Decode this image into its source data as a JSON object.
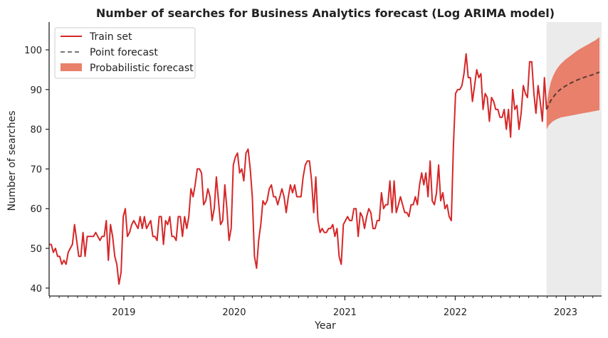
{
  "chart_data": {
    "type": "line",
    "title": "Number of searches for Business Analytics forecast (Log ARIMA model)",
    "xlabel": "Year",
    "ylabel": "Number of searches",
    "xlim": [
      "2018-04-29",
      "2023-04-30"
    ],
    "ylim": [
      38,
      107
    ],
    "x_ticks": [
      "2019",
      "2020",
      "2021",
      "2022",
      "2023"
    ],
    "y_ticks": [
      40,
      50,
      60,
      70,
      80,
      90,
      100
    ],
    "grid": false,
    "legend": {
      "position": "top-left",
      "entries": [
        "Train set",
        "Point forecast",
        "Probabilistic forecast"
      ]
    },
    "colors": {
      "train": "#d62728",
      "forecast": "#5a3b35",
      "interval": "#e8806b",
      "forecast_region": "#ebebeb",
      "axis": "#222222"
    },
    "train_set": {
      "name": "Train set",
      "start_date": "2018-04-29",
      "frequency": "weekly",
      "values": [
        51,
        51,
        49,
        50,
        48,
        48,
        46,
        47,
        46,
        49,
        50,
        51,
        56,
        52,
        48,
        48,
        54,
        48,
        53,
        53,
        53,
        53,
        54,
        53,
        52,
        53,
        53,
        57,
        47,
        56,
        53,
        48,
        46,
        41,
        44,
        58,
        60,
        53,
        54,
        56,
        57,
        56,
        55,
        58,
        55,
        58,
        55,
        56,
        57,
        53,
        53,
        52,
        58,
        58,
        51,
        57,
        56,
        58,
        53,
        53,
        52,
        58,
        58,
        53,
        58,
        55,
        58,
        65,
        63,
        66,
        70,
        70,
        69,
        61,
        62,
        65,
        63,
        57,
        60,
        68,
        62,
        56,
        57,
        66,
        60,
        52,
        55,
        71,
        73,
        74,
        69,
        70,
        67,
        74,
        75,
        70,
        63,
        48,
        45,
        52,
        56,
        62,
        61,
        62,
        65,
        66,
        63,
        63,
        61,
        63,
        65,
        63,
        59,
        63,
        66,
        64,
        66,
        63,
        63,
        63,
        68,
        71,
        72,
        72,
        67,
        59,
        68,
        57,
        54,
        55,
        54,
        54,
        55,
        55,
        56,
        53,
        55,
        48,
        46,
        56,
        57,
        58,
        57,
        57,
        60,
        60,
        53,
        59,
        58,
        55,
        58,
        60,
        59,
        55,
        55,
        57,
        57,
        64,
        60,
        61,
        61,
        67,
        59,
        67,
        59,
        61,
        63,
        61,
        59,
        59,
        58,
        61,
        61,
        63,
        61,
        66,
        69,
        66,
        69,
        63,
        72,
        62,
        61,
        64,
        71,
        62,
        64,
        60,
        61,
        58,
        57,
        76,
        89,
        90,
        90,
        91,
        94,
        99,
        93,
        93,
        87,
        91,
        95,
        93,
        94,
        85,
        89,
        88,
        82,
        88,
        87,
        85,
        85,
        83,
        83,
        85,
        80,
        85,
        78,
        90,
        85,
        86,
        80,
        84,
        91,
        89,
        88,
        97,
        97,
        89,
        84,
        91,
        87,
        82,
        93,
        85
      ]
    },
    "point_forecast": {
      "name": "Point forecast",
      "start_date": "2022-10-30",
      "frequency": "weekly",
      "values": [
        85,
        86.2,
        87.2,
        88,
        88.7,
        89.3,
        89.8,
        90.2,
        90.6,
        90.9,
        91.2,
        91.5,
        91.8,
        92.0,
        92.3,
        92.5,
        92.7,
        92.9,
        93.1,
        93.3,
        93.5,
        93.6,
        93.8,
        94.0,
        94.2,
        94.4
      ]
    },
    "probabilistic_forecast": {
      "name": "Probabilistic forecast",
      "start_date": "2022-10-30",
      "frequency": "weekly",
      "lower": [
        80,
        81,
        81.5,
        82,
        82.3,
        82.6,
        82.8,
        83,
        83.1,
        83.2,
        83.3,
        83.4,
        83.5,
        83.6,
        83.7,
        83.8,
        83.9,
        84,
        84.1,
        84.2,
        84.3,
        84.4,
        84.5,
        84.6,
        84.7,
        84.8
      ],
      "upper": [
        86,
        89.5,
        91.8,
        93.3,
        94.4,
        95.3,
        96,
        96.6,
        97.1,
        97.6,
        98,
        98.4,
        98.8,
        99.2,
        99.6,
        100,
        100.3,
        100.6,
        100.9,
        101.2,
        101.5,
        101.8,
        102.1,
        102.4,
        102.8,
        103.2
      ]
    }
  }
}
